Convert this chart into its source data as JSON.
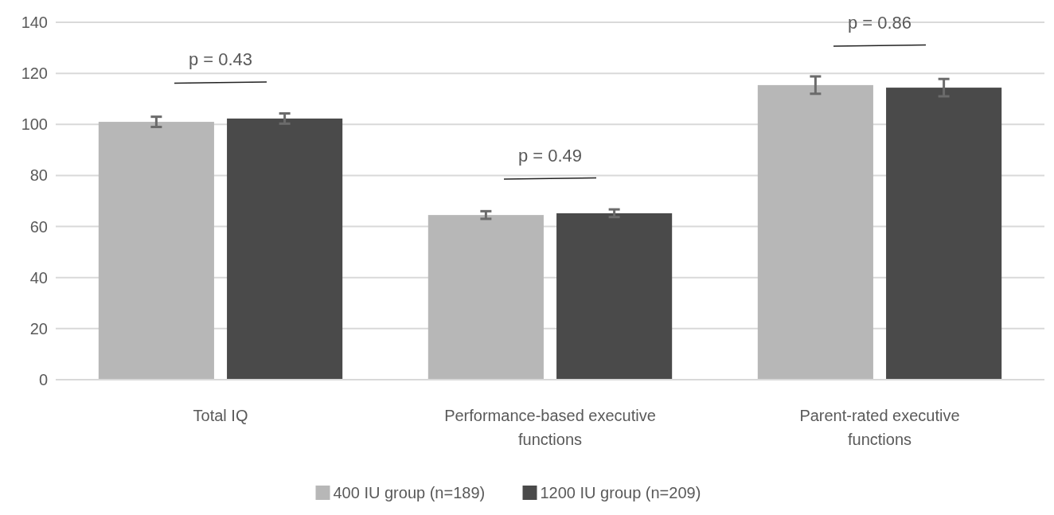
{
  "chart_data": {
    "type": "bar",
    "categories": [
      "Total IQ",
      "Performance-based executive functions",
      "Parent-rated executive functions"
    ],
    "series": [
      {
        "name": "400 IU group (n=189)",
        "color": "#b7b7b7",
        "values": [
          101,
          64.5,
          115.4
        ],
        "errors": [
          2,
          1.5,
          3.4
        ]
      },
      {
        "name": "1200 IU group (n=209)",
        "color": "#4a4a4a",
        "values": [
          102.3,
          65.2,
          114.4
        ],
        "errors": [
          2,
          1.5,
          3.4
        ]
      }
    ],
    "ylim": [
      0,
      140
    ],
    "yticks": [
      0,
      20,
      40,
      60,
      80,
      100,
      120,
      140
    ],
    "grid": "y",
    "legend": "bottom",
    "annotations": [
      "p = 0.43",
      "p = 0.49",
      "p = 0.86"
    ]
  }
}
